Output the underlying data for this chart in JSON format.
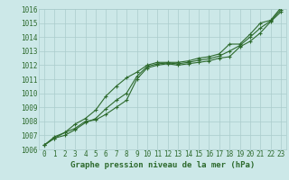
{
  "xlabel": "Graphe pression niveau de la mer (hPa)",
  "x": [
    0,
    1,
    2,
    3,
    4,
    5,
    6,
    7,
    8,
    9,
    10,
    11,
    12,
    13,
    14,
    15,
    16,
    17,
    18,
    19,
    20,
    21,
    22,
    23
  ],
  "line_min": [
    1006.3,
    1006.8,
    1007.2,
    1007.5,
    1008.0,
    1008.1,
    1008.5,
    1009.0,
    1009.5,
    1011.0,
    1011.8,
    1012.0,
    1012.1,
    1012.0,
    1012.1,
    1012.2,
    1012.3,
    1012.5,
    1012.6,
    1013.3,
    1013.7,
    1014.3,
    1015.1,
    1015.8
  ],
  "line_max": [
    1006.3,
    1006.9,
    1007.2,
    1007.8,
    1008.2,
    1008.8,
    1009.8,
    1010.5,
    1011.1,
    1011.5,
    1012.0,
    1012.2,
    1012.2,
    1012.2,
    1012.3,
    1012.5,
    1012.6,
    1012.8,
    1013.5,
    1013.5,
    1014.2,
    1015.0,
    1015.2,
    1016.1
  ],
  "line_mean": [
    1006.3,
    1006.8,
    1007.0,
    1007.4,
    1007.9,
    1008.2,
    1008.9,
    1009.5,
    1010.0,
    1011.2,
    1011.9,
    1012.1,
    1012.15,
    1012.1,
    1012.2,
    1012.35,
    1012.45,
    1012.65,
    1013.0,
    1013.4,
    1014.0,
    1014.65,
    1015.15,
    1015.95
  ],
  "line_color": "#2d6a2d",
  "bg_color": "#cce8e8",
  "grid_color": "#aacccc",
  "ylim_min": 1006,
  "ylim_max": 1016,
  "xlim_min": 0,
  "xlim_max": 23,
  "yticks": [
    1006,
    1007,
    1008,
    1009,
    1010,
    1011,
    1012,
    1013,
    1014,
    1015,
    1016
  ],
  "xticks": [
    0,
    1,
    2,
    3,
    4,
    5,
    6,
    7,
    8,
    9,
    10,
    11,
    12,
    13,
    14,
    15,
    16,
    17,
    18,
    19,
    20,
    21,
    22,
    23
  ],
  "marker": "+",
  "markersize": 3,
  "linewidth": 0.8,
  "label_fontsize": 6.5,
  "tick_fontsize": 5.5
}
